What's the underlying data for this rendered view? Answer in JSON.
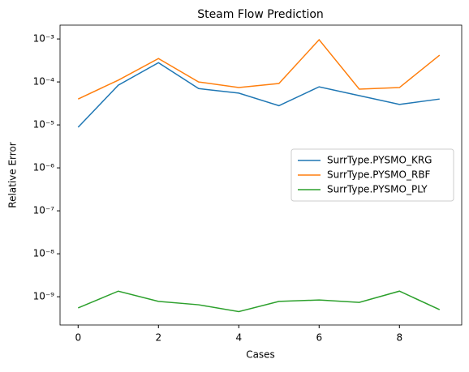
{
  "chart_data": {
    "type": "line",
    "title": "Steam Flow Prediction",
    "x_label": "Cases",
    "y_label": "Relative Error",
    "x": [
      0,
      1,
      2,
      3,
      4,
      5,
      6,
      7,
      8,
      9
    ],
    "series": [
      {
        "name": "SurrType.PYSMO_KRG",
        "color": "#1f77b4",
        "values": [
          8.8e-06,
          8.4e-05,
          0.00028,
          7e-05,
          5.5e-05,
          2.8e-05,
          7.7e-05,
          4.8e-05,
          3e-05,
          4e-05
        ]
      },
      {
        "name": "SurrType.PYSMO_RBF",
        "color": "#ff7f0e",
        "values": [
          4e-05,
          0.00011,
          0.00035,
          0.0001,
          7.4e-05,
          9.2e-05,
          0.00096,
          6.8e-05,
          7.4e-05,
          0.00042
        ]
      },
      {
        "name": "SurrType.PYSMO_PLY",
        "color": "#2ca02c",
        "values": [
          5.5e-10,
          1.35e-09,
          7.8e-10,
          6.5e-10,
          4.5e-10,
          7.8e-10,
          8.4e-10,
          7.4e-10,
          1.35e-09,
          5e-10
        ]
      }
    ],
    "xlim": [
      -0.45,
      9.55
    ],
    "xticks": [
      0,
      2,
      4,
      6,
      8
    ],
    "ylim": [
      2.2e-10,
      0.0021
    ],
    "log_y": true,
    "yticks": [
      {
        "value": 1e-09,
        "label": "10⁻⁹"
      },
      {
        "value": 1e-08,
        "label": "10⁻⁸"
      },
      {
        "value": 1e-07,
        "label": "10⁻⁷"
      },
      {
        "value": 1e-06,
        "label": "10⁻⁶"
      },
      {
        "value": 1e-05,
        "label": "10⁻⁵"
      },
      {
        "value": 0.0001,
        "label": "10⁻⁴"
      },
      {
        "value": 0.001,
        "label": "10⁻³"
      }
    ],
    "legend": "center right"
  }
}
